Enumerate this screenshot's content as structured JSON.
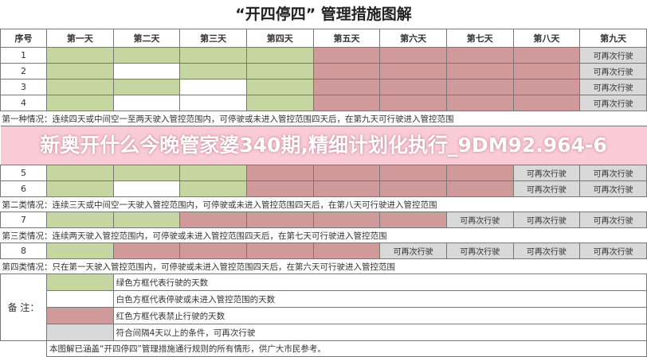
{
  "title": "“开四停四” 管理措施图解",
  "headers": [
    "序号",
    "第一天",
    "第二天",
    "第三天",
    "第四天",
    "第五天",
    "第六天",
    "第七天",
    "第八天",
    "第九天"
  ],
  "resume_label": "可再次行驶",
  "colors": {
    "green": "#c5d6a0",
    "white": "#ffffff",
    "red": "#d09a9b",
    "gray": "#d9d9d9"
  },
  "rows": [
    {
      "seq": "1",
      "cells": [
        "g",
        "g",
        "g",
        "g",
        "r",
        "r",
        "r",
        "r",
        "l"
      ]
    },
    {
      "seq": "2",
      "cells": [
        "g",
        "w",
        "g",
        "g",
        "r",
        "r",
        "r",
        "r",
        "l"
      ]
    },
    {
      "seq": "3",
      "cells": [
        "g",
        "g",
        "w",
        "g",
        "r",
        "r",
        "r",
        "r",
        "l"
      ]
    },
    {
      "seq": "4",
      "cells": [
        "g",
        "w",
        "w",
        "g",
        "r",
        "r",
        "r",
        "r",
        "l"
      ]
    },
    {
      "seq": "5",
      "cells": [
        "g",
        "g",
        "g",
        "r",
        "r",
        "r",
        "r",
        "l",
        "l"
      ]
    },
    {
      "seq": "6",
      "cells": [
        "g",
        "w",
        "g",
        "r",
        "r",
        "r",
        "r",
        "l",
        "l"
      ]
    },
    {
      "seq": "7",
      "cells": [
        "g",
        "g",
        "r",
        "r",
        "r",
        "r",
        "l",
        "l",
        "l"
      ]
    },
    {
      "seq": "8",
      "cells": [
        "g",
        "r",
        "r",
        "r",
        "r",
        "l",
        "l",
        "l",
        "l"
      ]
    }
  ],
  "notes": [
    "第一种情况：连续四天或中间空一至两天驶入管控范围内，可停驶或未进入管控范围四天后，在第九天可行驶进入管控范围",
    "第二类情况：连续三天或中间空一天驶入管控范围内，可停驶或未进入管控范围四天后，在第八天可行驶进入管控范围",
    "第三类情况：连续两天驶入管控范围内，可停驶或未进入管控范围四天后，在第七天可行驶进入管控范围",
    "第四类情况：只在第一天驶入管控范围内，可停驶或未进入管控范围四天后，在第六天可行驶进入管控范围"
  ],
  "legend": {
    "label": "备 注：",
    "items": [
      {
        "color": "g",
        "text": "绿色方框代表行驶的天数"
      },
      {
        "color": "w",
        "text": "白色方框代表停驶或未进入管控范围的天数"
      },
      {
        "color": "r",
        "text": "红色方框代表禁止行驶的天数"
      },
      {
        "color": "l",
        "text": "符合间隔4天以上的条件，可再次行驶"
      }
    ],
    "footer": "本图解已涵盖“开四停四”管理措施通行规则的所有情形，供广大市民参考。"
  },
  "overlay_text": "新奥开什么今晚管家婆340期,精细计划化执行_9DM92.964-6"
}
